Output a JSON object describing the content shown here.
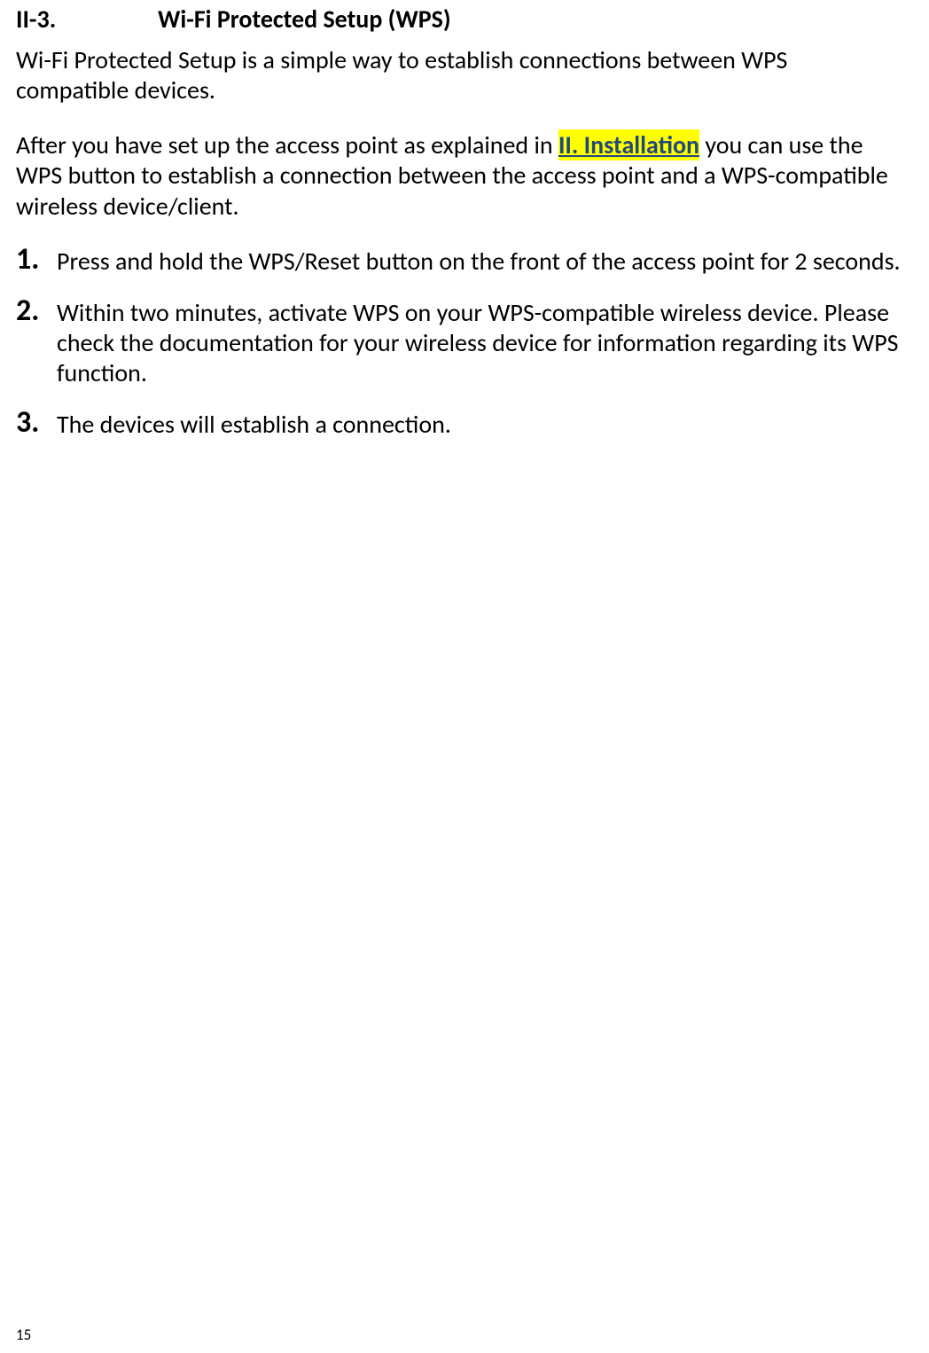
{
  "heading": {
    "number": "II-3.",
    "title": "Wi-Fi Protected Setup (WPS)"
  },
  "para1": "Wi-Fi Protected Setup is a simple way to establish connections between WPS compatible devices.",
  "para2": {
    "pre": "After you have set up the access point as explained in ",
    "link": "II. Installation",
    "post": " you can use the WPS button to establish a connection between the access point and a WPS-compatible wireless device/client."
  },
  "steps": [
    {
      "num": "1.",
      "text": "Press and hold the WPS/Reset button on the front of the access point for 2 seconds."
    },
    {
      "num": "2.",
      "text": "Within two minutes, activate WPS on your WPS-compatible wireless device. Please check the documentation for your wireless device for information regarding its WPS function."
    },
    {
      "num": "3.",
      "text": "The devices will establish a connection."
    }
  ],
  "page_number": "15",
  "colors": {
    "link_text": "#1f497d",
    "highlight_bg": "#ffff00",
    "body_text": "#000000",
    "background": "#ffffff"
  },
  "typography": {
    "heading_fontsize": 28,
    "heading_weight": "bold",
    "body_fontsize": 28,
    "step_number_fontsize": 34,
    "pagenum_fontsize": 17,
    "font_family": "Calibri"
  }
}
